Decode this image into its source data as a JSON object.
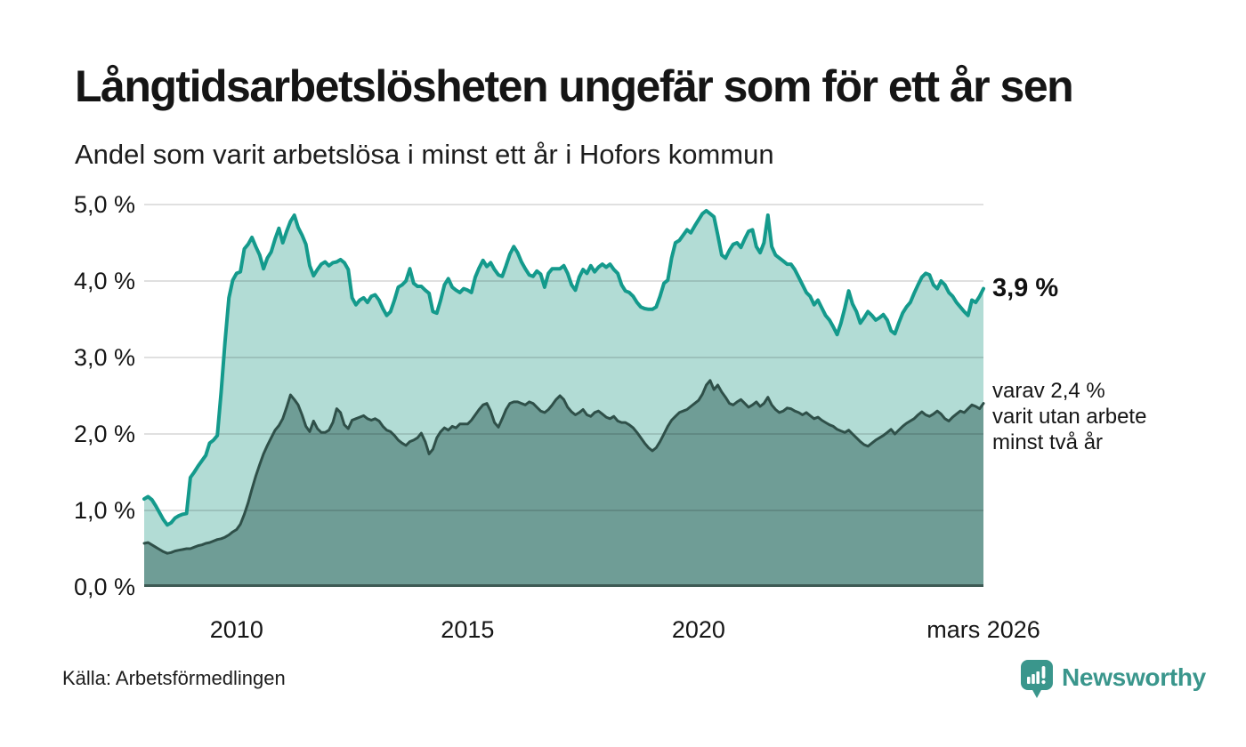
{
  "header": {
    "title": "Långtidsarbetslösheten ungefär som för ett år sen",
    "subtitle": "Andel som varit arbetslösa i minst ett år i Hofors kommun"
  },
  "colors": {
    "accent_teal": "#149a8c",
    "fill_light": "#b2dcd5",
    "dark_line": "#2f5049",
    "fill_dark": "#6f9d96",
    "grid": "#e2e2e2",
    "axis_baseline": "#3d5a54",
    "brand_teal": "#3a968c",
    "text": "#161616"
  },
  "chart_data": {
    "type": "area",
    "title": "Långtidsarbetslösheten ungefär som för ett år sen",
    "subtitle": "Andel som varit arbetslösa i minst ett år i Hofors kommun",
    "unit": "%",
    "grid": true,
    "legend_position": "none",
    "x_start_year": 2008,
    "x_start_month": 1,
    "x_end_year": 2026,
    "x_end_month": 3,
    "ylim": [
      0,
      5
    ],
    "y_ticks": [
      {
        "label": "0,0 %",
        "v": 0
      },
      {
        "label": "1,0 %",
        "v": 1
      },
      {
        "label": "2,0 %",
        "v": 2
      },
      {
        "label": "3,0 %",
        "v": 3
      },
      {
        "label": "4,0 %",
        "v": 4
      },
      {
        "label": "5,0 %",
        "v": 5
      }
    ],
    "x_ticks": [
      {
        "label": "2010",
        "t": 2010.0
      },
      {
        "label": "2015",
        "t": 2015.0
      },
      {
        "label": "2020",
        "t": 2020.0
      },
      {
        "label": "mars 2026",
        "t": 2026.1667
      }
    ],
    "series": [
      {
        "name": "Andel arbetslösa minst ett år",
        "line_color": "#149a8c",
        "fill_color": "#b2dcd5",
        "line_width": 4,
        "last_value": 3.9,
        "values": [
          1.15,
          1.18,
          1.14,
          1.06,
          0.97,
          0.88,
          0.81,
          0.84,
          0.9,
          0.93,
          0.95,
          0.96,
          1.43,
          1.5,
          1.58,
          1.65,
          1.72,
          1.88,
          1.92,
          1.98,
          2.55,
          3.2,
          3.78,
          4.01,
          4.1,
          4.12,
          4.42,
          4.48,
          4.57,
          4.45,
          4.34,
          4.16,
          4.3,
          4.38,
          4.55,
          4.69,
          4.5,
          4.65,
          4.78,
          4.86,
          4.7,
          4.6,
          4.48,
          4.2,
          4.07,
          4.15,
          4.22,
          4.25,
          4.2,
          4.24,
          4.25,
          4.28,
          4.24,
          4.15,
          3.78,
          3.69,
          3.75,
          3.78,
          3.72,
          3.8,
          3.82,
          3.75,
          3.64,
          3.55,
          3.6,
          3.75,
          3.92,
          3.95,
          4.0,
          4.16,
          3.97,
          3.93,
          3.93,
          3.88,
          3.84,
          3.6,
          3.58,
          3.75,
          3.95,
          4.03,
          3.92,
          3.88,
          3.85,
          3.9,
          3.88,
          3.85,
          4.05,
          4.17,
          4.27,
          4.19,
          4.24,
          4.15,
          4.08,
          4.06,
          4.2,
          4.35,
          4.45,
          4.37,
          4.25,
          4.16,
          4.08,
          4.06,
          4.13,
          4.09,
          3.92,
          4.1,
          4.16,
          4.16,
          4.16,
          4.2,
          4.1,
          3.95,
          3.88,
          4.05,
          4.15,
          4.1,
          4.2,
          4.12,
          4.18,
          4.22,
          4.18,
          4.22,
          4.15,
          4.1,
          3.95,
          3.87,
          3.85,
          3.8,
          3.72,
          3.66,
          3.64,
          3.63,
          3.63,
          3.66,
          3.8,
          3.97,
          4.01,
          4.3,
          4.5,
          4.53,
          4.6,
          4.67,
          4.63,
          4.72,
          4.8,
          4.88,
          4.92,
          4.88,
          4.84,
          4.6,
          4.34,
          4.3,
          4.4,
          4.48,
          4.5,
          4.44,
          4.55,
          4.65,
          4.67,
          4.45,
          4.37,
          4.5,
          4.86,
          4.45,
          4.34,
          4.3,
          4.26,
          4.22,
          4.22,
          4.15,
          4.05,
          3.95,
          3.85,
          3.8,
          3.69,
          3.75,
          3.65,
          3.55,
          3.49,
          3.4,
          3.3,
          3.45,
          3.65,
          3.87,
          3.7,
          3.6,
          3.45,
          3.52,
          3.6,
          3.55,
          3.49,
          3.52,
          3.56,
          3.49,
          3.35,
          3.31,
          3.45,
          3.58,
          3.66,
          3.72,
          3.84,
          3.95,
          4.05,
          4.1,
          4.08,
          3.95,
          3.9,
          4.0,
          3.95,
          3.85,
          3.8,
          3.72,
          3.66,
          3.6,
          3.55,
          3.75,
          3.72,
          3.8,
          3.9
        ]
      },
      {
        "name": "varav utan arbete minst två år",
        "line_color": "#2f5049",
        "fill_color": "#6f9d96",
        "line_width": 3,
        "last_value": 2.4,
        "values": [
          0.57,
          0.58,
          0.55,
          0.52,
          0.49,
          0.46,
          0.44,
          0.45,
          0.47,
          0.48,
          0.49,
          0.5,
          0.5,
          0.52,
          0.54,
          0.55,
          0.57,
          0.58,
          0.6,
          0.62,
          0.63,
          0.65,
          0.68,
          0.72,
          0.75,
          0.82,
          0.95,
          1.1,
          1.28,
          1.45,
          1.6,
          1.74,
          1.85,
          1.95,
          2.05,
          2.11,
          2.2,
          2.35,
          2.51,
          2.45,
          2.38,
          2.25,
          2.1,
          2.03,
          2.17,
          2.07,
          2.02,
          2.02,
          2.05,
          2.15,
          2.33,
          2.28,
          2.12,
          2.07,
          2.18,
          2.2,
          2.22,
          2.24,
          2.2,
          2.18,
          2.2,
          2.17,
          2.1,
          2.05,
          2.03,
          1.98,
          1.92,
          1.88,
          1.85,
          1.9,
          1.92,
          1.95,
          2.01,
          1.9,
          1.74,
          1.8,
          1.95,
          2.03,
          2.08,
          2.05,
          2.1,
          2.08,
          2.13,
          2.13,
          2.13,
          2.18,
          2.25,
          2.32,
          2.38,
          2.4,
          2.3,
          2.15,
          2.09,
          2.2,
          2.32,
          2.4,
          2.42,
          2.42,
          2.4,
          2.38,
          2.42,
          2.4,
          2.35,
          2.3,
          2.28,
          2.32,
          2.38,
          2.45,
          2.5,
          2.45,
          2.35,
          2.29,
          2.25,
          2.28,
          2.32,
          2.25,
          2.23,
          2.28,
          2.3,
          2.26,
          2.22,
          2.2,
          2.23,
          2.17,
          2.15,
          2.15,
          2.12,
          2.08,
          2.02,
          1.95,
          1.88,
          1.82,
          1.78,
          1.82,
          1.9,
          2.0,
          2.1,
          2.18,
          2.23,
          2.28,
          2.3,
          2.32,
          2.36,
          2.4,
          2.44,
          2.52,
          2.64,
          2.7,
          2.58,
          2.64,
          2.55,
          2.48,
          2.4,
          2.38,
          2.42,
          2.45,
          2.4,
          2.35,
          2.38,
          2.42,
          2.36,
          2.4,
          2.48,
          2.38,
          2.32,
          2.28,
          2.3,
          2.34,
          2.33,
          2.3,
          2.28,
          2.25,
          2.28,
          2.24,
          2.2,
          2.22,
          2.18,
          2.15,
          2.12,
          2.1,
          2.06,
          2.04,
          2.02,
          2.05,
          2.0,
          1.95,
          1.9,
          1.86,
          1.84,
          1.88,
          1.92,
          1.95,
          1.98,
          2.02,
          2.06,
          2.0,
          2.05,
          2.1,
          2.14,
          2.17,
          2.2,
          2.25,
          2.29,
          2.25,
          2.23,
          2.26,
          2.3,
          2.26,
          2.2,
          2.17,
          2.22,
          2.26,
          2.3,
          2.28,
          2.33,
          2.38,
          2.36,
          2.33,
          2.4
        ]
      }
    ],
    "annotations": {
      "value_label": "3,9 %",
      "secondary_lines": [
        "varav 2,4 %",
        "varit utan arbete",
        "minst två år"
      ]
    }
  },
  "footer": {
    "source": "Källa: Arbetsförmedlingen",
    "brand": "Newsworthy"
  }
}
